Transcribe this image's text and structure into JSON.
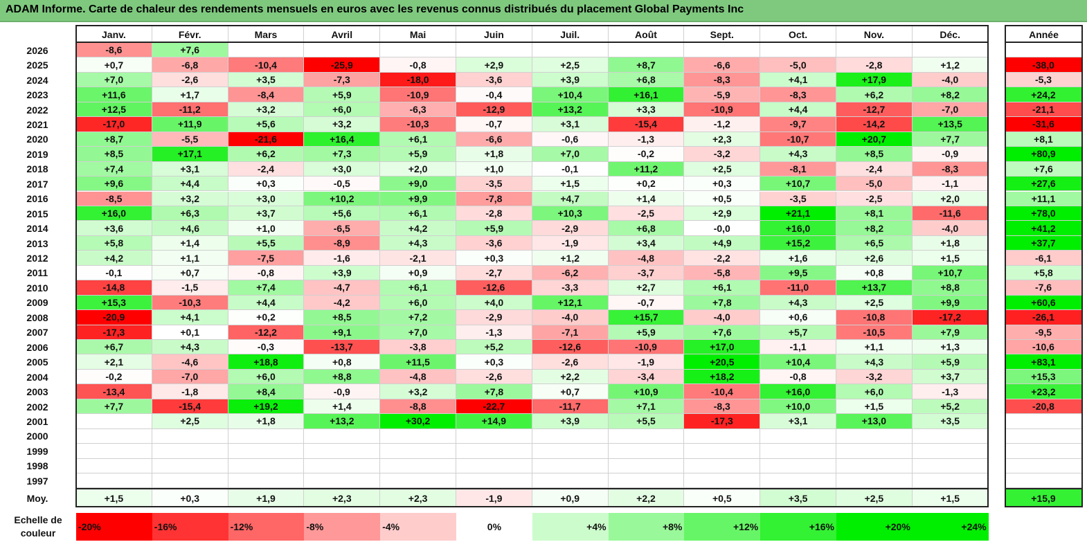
{
  "title": "ADAM Informe. Carte de chaleur des rendements mensuels en euros avec les revenus connus distribués du placement Global Payments Inc",
  "chart_data": {
    "type": "heatmap",
    "months": [
      "Janv.",
      "Févr.",
      "Mars",
      "Avril",
      "Mai",
      "Juin",
      "Juil.",
      "Août",
      "Sept.",
      "Oct.",
      "Nov.",
      "Déc."
    ],
    "year_header": "Année",
    "avg_label": "Moy.",
    "rows": [
      {
        "year": "2026",
        "months": [
          "-8,6",
          "+7,6",
          "",
          "",
          "",
          "",
          "",
          "",
          "",
          "",
          "",
          ""
        ],
        "annual": ""
      },
      {
        "year": "2025",
        "months": [
          "+0,7",
          "-6,8",
          "-10,4",
          "-25,9",
          "-0,8",
          "+2,9",
          "+2,5",
          "+8,7",
          "-6,6",
          "-5,0",
          "-2,8",
          "+1,2"
        ],
        "annual": "-38,0"
      },
      {
        "year": "2024",
        "months": [
          "+7,0",
          "-2,6",
          "+3,5",
          "-7,3",
          "-18,0",
          "-3,6",
          "+3,9",
          "+6,8",
          "-8,3",
          "+4,1",
          "+17,9",
          "-4,0"
        ],
        "annual": "-5,3"
      },
      {
        "year": "2023",
        "months": [
          "+11,6",
          "+1,7",
          "-8,4",
          "+5,9",
          "-10,9",
          "-0,4",
          "+10,4",
          "+16,1",
          "-5,9",
          "-8,3",
          "+6,2",
          "+8,2"
        ],
        "annual": "+24,2"
      },
      {
        "year": "2022",
        "months": [
          "+12,5",
          "-11,2",
          "+3,2",
          "+6,0",
          "-6,3",
          "-12,9",
          "+13,2",
          "+3,3",
          "-10,9",
          "+4,4",
          "-12,7",
          "-7,0"
        ],
        "annual": "-21,1"
      },
      {
        "year": "2021",
        "months": [
          "-17,0",
          "+11,9",
          "+5,6",
          "+3,2",
          "-10,3",
          "-0,7",
          "+3,1",
          "-15,4",
          "-1,2",
          "-9,7",
          "-14,2",
          "+13,5"
        ],
        "annual": "-31,6"
      },
      {
        "year": "2020",
        "months": [
          "+8,7",
          "-5,5",
          "-21,6",
          "+16,4",
          "+6,1",
          "-6,6",
          "-0,6",
          "-1,3",
          "+2,3",
          "-10,7",
          "+20,7",
          "+7,7"
        ],
        "annual": "+8,1"
      },
      {
        "year": "2019",
        "months": [
          "+8,5",
          "+17,1",
          "+6,2",
          "+7,3",
          "+5,9",
          "+1,8",
          "+7,0",
          "-0,2",
          "-3,2",
          "+4,3",
          "+8,5",
          "-0,9"
        ],
        "annual": "+80,9"
      },
      {
        "year": "2018",
        "months": [
          "+7,4",
          "+3,1",
          "-2,4",
          "+3,0",
          "+2,0",
          "+1,0",
          "-0,1",
          "+11,2",
          "+2,5",
          "-8,1",
          "-2,4",
          "-8,3"
        ],
        "annual": "+7,6"
      },
      {
        "year": "2017",
        "months": [
          "+9,6",
          "+4,4",
          "+0,3",
          "-0,5",
          "+9,0",
          "-3,5",
          "+1,5",
          "+0,2",
          "+0,3",
          "+10,7",
          "-5,0",
          "-1,1"
        ],
        "annual": "+27,6"
      },
      {
        "year": "2016",
        "months": [
          "-8,5",
          "+3,2",
          "+3,0",
          "+10,2",
          "+9,9",
          "-7,8",
          "+4,7",
          "+1,4",
          "+0,5",
          "-3,5",
          "-2,5",
          "+2,0"
        ],
        "annual": "+11,1"
      },
      {
        "year": "2015",
        "months": [
          "+16,0",
          "+6,3",
          "+3,7",
          "+5,6",
          "+6,1",
          "-2,8",
          "+10,3",
          "-2,5",
          "+2,9",
          "+21,1",
          "+8,1",
          "-11,6"
        ],
        "annual": "+78,0"
      },
      {
        "year": "2014",
        "months": [
          "+3,6",
          "+4,6",
          "+1,0",
          "-6,5",
          "+4,2",
          "+5,9",
          "-2,9",
          "+6,8",
          "-0,0",
          "+16,0",
          "+8,2",
          "-4,0"
        ],
        "annual": "+41,2"
      },
      {
        "year": "2013",
        "months": [
          "+5,8",
          "+1,4",
          "+5,5",
          "-8,9",
          "+4,3",
          "-3,6",
          "-1,9",
          "+3,4",
          "+4,9",
          "+15,2",
          "+6,5",
          "+1,8"
        ],
        "annual": "+37,7"
      },
      {
        "year": "2012",
        "months": [
          "+4,2",
          "+1,1",
          "-7,5",
          "-1,6",
          "-2,1",
          "+0,3",
          "+1,2",
          "-4,8",
          "-2,2",
          "+1,6",
          "+2,6",
          "+1,5"
        ],
        "annual": "-6,1"
      },
      {
        "year": "2011",
        "months": [
          "-0,1",
          "+0,7",
          "-0,8",
          "+3,9",
          "+0,9",
          "-2,7",
          "-6,2",
          "-3,7",
          "-5,8",
          "+9,5",
          "+0,8",
          "+10,7"
        ],
        "annual": "+5,8"
      },
      {
        "year": "2010",
        "months": [
          "-14,8",
          "-1,5",
          "+7,4",
          "-4,7",
          "+6,1",
          "-12,6",
          "-3,3",
          "+2,7",
          "+6,1",
          "-11,0",
          "+13,7",
          "+8,8"
        ],
        "annual": "-7,6"
      },
      {
        "year": "2009",
        "months": [
          "+15,3",
          "-10,3",
          "+4,4",
          "-4,2",
          "+6,0",
          "+4,0",
          "+12,1",
          "-0,7",
          "+7,8",
          "+4,3",
          "+2,5",
          "+9,9"
        ],
        "annual": "+60,6"
      },
      {
        "year": "2008",
        "months": [
          "-20,9",
          "+4,1",
          "+0,2",
          "+8,5",
          "+7,2",
          "-2,9",
          "-4,0",
          "+15,7",
          "-4,0",
          "+0,6",
          "-10,8",
          "-17,2"
        ],
        "annual": "-26,1"
      },
      {
        "year": "2007",
        "months": [
          "-17,3",
          "+0,1",
          "-12,2",
          "+9,1",
          "+7,0",
          "-1,3",
          "-7,1",
          "+5,9",
          "+7,6",
          "+5,7",
          "-10,5",
          "+7,9"
        ],
        "annual": "-9,5"
      },
      {
        "year": "2006",
        "months": [
          "+6,7",
          "+4,3",
          "-0,3",
          "-13,7",
          "-3,8",
          "+5,2",
          "-12,6",
          "-10,9",
          "+17,0",
          "-1,1",
          "+1,1",
          "+1,3"
        ],
        "annual": "-10,6"
      },
      {
        "year": "2005",
        "months": [
          "+2,1",
          "-4,6",
          "+18,8",
          "+0,8",
          "+11,5",
          "+0,3",
          "-2,6",
          "-1,9",
          "+20,5",
          "+10,4",
          "+4,3",
          "+5,9"
        ],
        "annual": "+83,1"
      },
      {
        "year": "2004",
        "months": [
          "-0,2",
          "-7,0",
          "+6,0",
          "+8,8",
          "-4,8",
          "-2,6",
          "+2,2",
          "-3,4",
          "+18,2",
          "-0,8",
          "-3,2",
          "+3,7"
        ],
        "annual": "+15,3"
      },
      {
        "year": "2003",
        "months": [
          "-13,4",
          "-1,8",
          "+8,4",
          "-0,9",
          "+3,2",
          "+7,8",
          "+0,7",
          "+10,9",
          "-10,4",
          "+16,0",
          "+6,0",
          "-1,3"
        ],
        "annual": "+23,2"
      },
      {
        "year": "2002",
        "months": [
          "+7,7",
          "-15,4",
          "+19,2",
          "+1,4",
          "-8,8",
          "-22,7",
          "-11,7",
          "+7,1",
          "-8,3",
          "+10,0",
          "+1,5",
          "+5,2"
        ],
        "annual": "-20,8"
      },
      {
        "year": "2001",
        "months": [
          "",
          "+2,5",
          "+1,8",
          "+13,2",
          "+30,2",
          "+14,9",
          "+3,9",
          "+5,5",
          "-17,3",
          "+3,1",
          "+13,0",
          "+3,5"
        ],
        "annual": ""
      },
      {
        "year": "2000",
        "months": [
          "",
          "",
          "",
          "",
          "",
          "",
          "",
          "",
          "",
          "",
          "",
          ""
        ],
        "annual": ""
      },
      {
        "year": "1999",
        "months": [
          "",
          "",
          "",
          "",
          "",
          "",
          "",
          "",
          "",
          "",
          "",
          ""
        ],
        "annual": ""
      },
      {
        "year": "1998",
        "months": [
          "",
          "",
          "",
          "",
          "",
          "",
          "",
          "",
          "",
          "",
          "",
          ""
        ],
        "annual": ""
      },
      {
        "year": "1997",
        "months": [
          "",
          "",
          "",
          "",
          "",
          "",
          "",
          "",
          "",
          "",
          "",
          ""
        ],
        "annual": ""
      }
    ],
    "averages": {
      "months": [
        "+1,5",
        "+0,3",
        "+1,9",
        "+2,3",
        "+2,3",
        "-1,9",
        "+0,9",
        "+2,2",
        "+0,5",
        "+3,5",
        "+2,5",
        "+1,5"
      ],
      "annual": "+15,9"
    },
    "scale": {
      "label": "Echelle de couleur",
      "stops": [
        "-20%",
        "-16%",
        "-12%",
        "-8%",
        "-4%",
        "0%",
        "+4%",
        "+8%",
        "+12%",
        "+16%",
        "+20%",
        "+24%"
      ],
      "values": [
        -20,
        -16,
        -12,
        -8,
        -4,
        0,
        4,
        8,
        12,
        16,
        20,
        24
      ]
    },
    "colors": {
      "negative": "#ff0000",
      "neutral": "#ffffff",
      "positive": "#00ee00"
    }
  }
}
